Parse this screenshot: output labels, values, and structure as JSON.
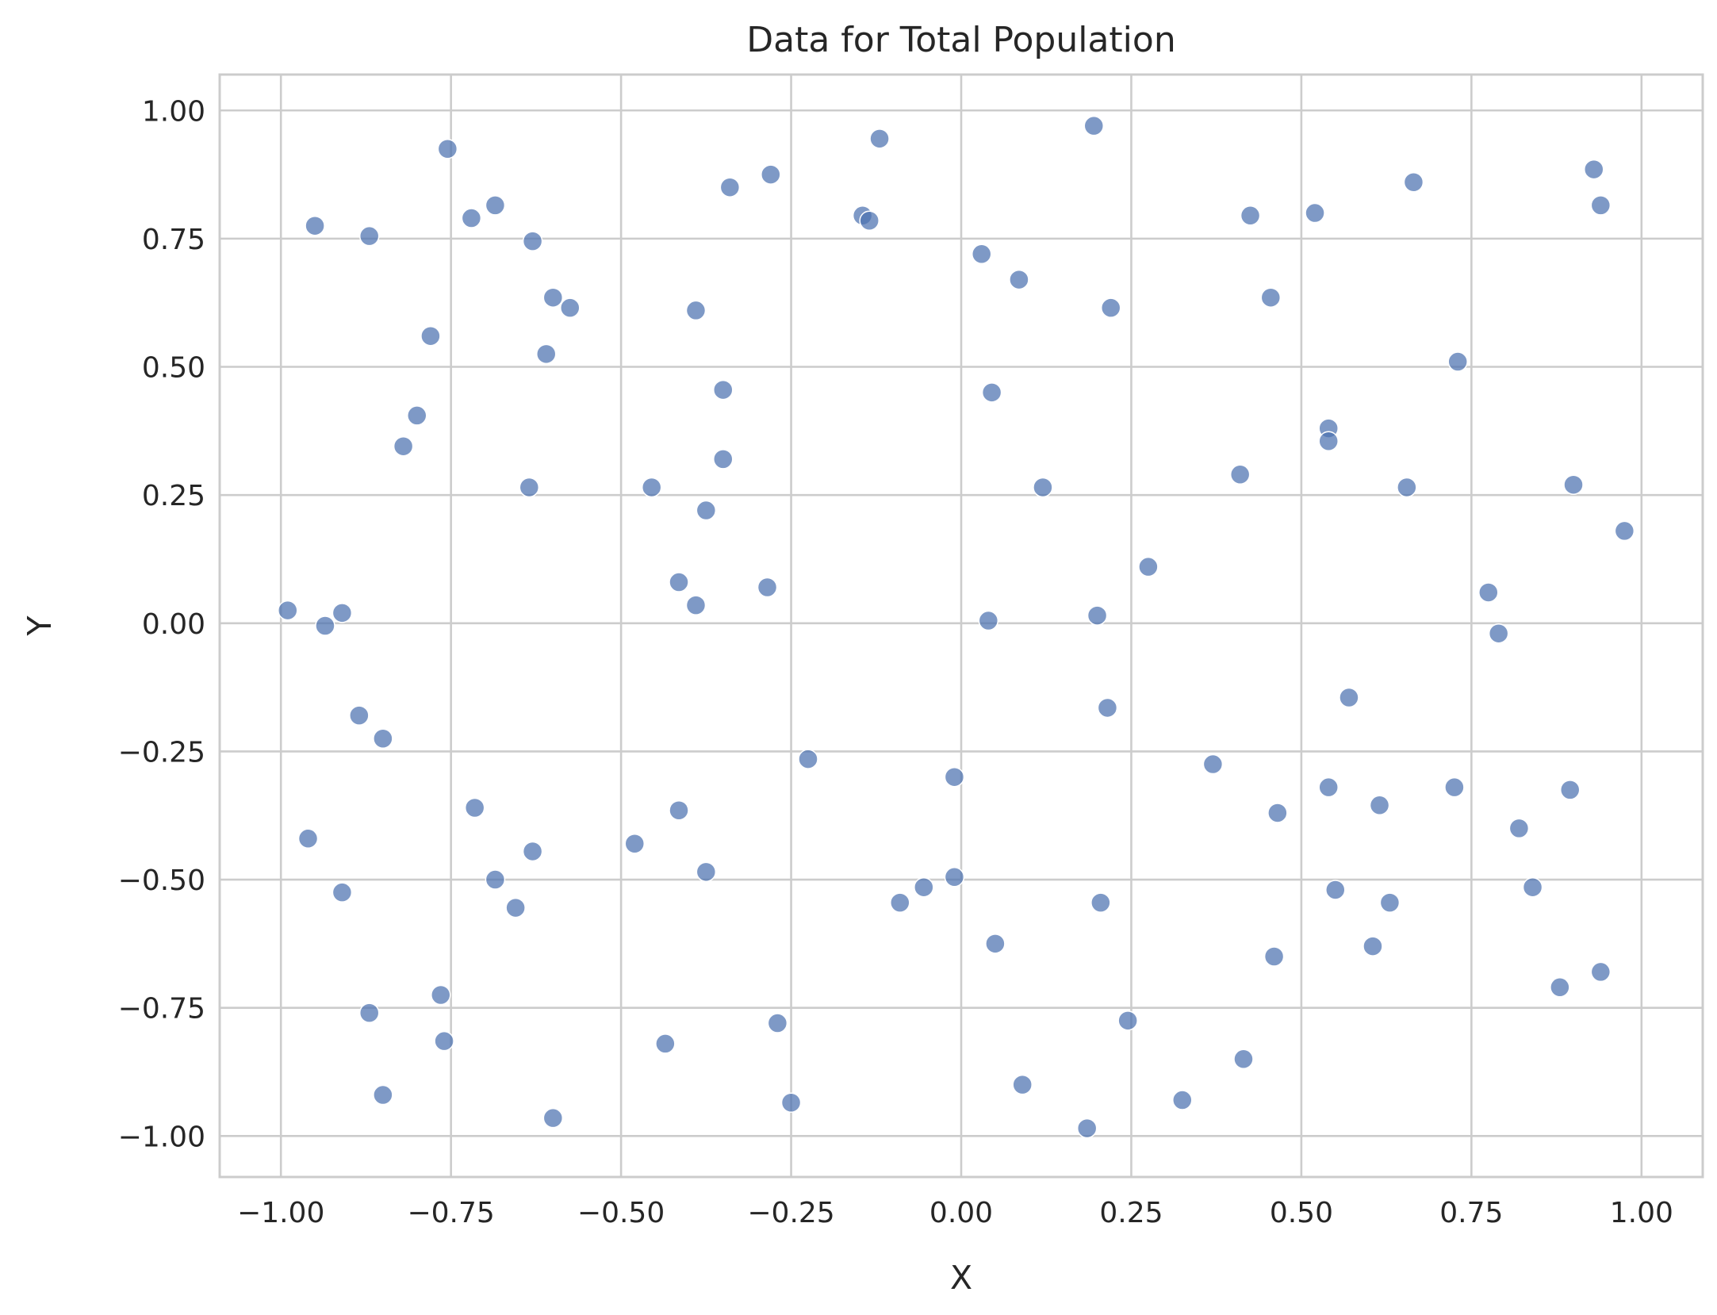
{
  "chart_data": {
    "type": "scatter",
    "title": "Data for Total Population",
    "xlabel": "X",
    "ylabel": "Y",
    "xlim": [
      -1.09,
      1.09
    ],
    "ylim": [
      -1.08,
      1.07
    ],
    "x_ticks": [
      -1.0,
      -0.75,
      -0.5,
      -0.25,
      0.0,
      0.25,
      0.5,
      0.75,
      1.0
    ],
    "y_ticks": [
      -1.0,
      -0.75,
      -0.5,
      -0.25,
      0.0,
      0.25,
      0.5,
      0.75,
      1.0
    ],
    "x_tick_labels": [
      "−1.00",
      "−0.75",
      "−0.50",
      "−0.25",
      "0.00",
      "0.25",
      "0.50",
      "0.75",
      "1.00"
    ],
    "y_tick_labels": [
      "1.00",
      "0.75",
      "0.50",
      "0.25",
      "0.00",
      "−0.25",
      "−0.50",
      "−0.75",
      "−1.00"
    ],
    "grid": true,
    "point_color": "#4c72b0",
    "points": [
      {
        "x": -0.99,
        "y": 0.025
      },
      {
        "x": -0.95,
        "y": 0.775
      },
      {
        "x": -0.96,
        "y": -0.42
      },
      {
        "x": -0.935,
        "y": -0.005
      },
      {
        "x": -0.91,
        "y": 0.02
      },
      {
        "x": -0.91,
        "y": -0.525
      },
      {
        "x": -0.885,
        "y": -0.18
      },
      {
        "x": -0.87,
        "y": 0.755
      },
      {
        "x": -0.87,
        "y": -0.76
      },
      {
        "x": -0.85,
        "y": -0.225
      },
      {
        "x": -0.85,
        "y": -0.92
      },
      {
        "x": -0.82,
        "y": 0.345
      },
      {
        "x": -0.8,
        "y": 0.405
      },
      {
        "x": -0.78,
        "y": 0.56
      },
      {
        "x": -0.765,
        "y": -0.725
      },
      {
        "x": -0.76,
        "y": -0.815
      },
      {
        "x": -0.755,
        "y": 0.925
      },
      {
        "x": -0.72,
        "y": 0.79
      },
      {
        "x": -0.715,
        "y": -0.36
      },
      {
        "x": -0.685,
        "y": 0.815
      },
      {
        "x": -0.685,
        "y": -0.5
      },
      {
        "x": -0.655,
        "y": -0.555
      },
      {
        "x": -0.635,
        "y": 0.265
      },
      {
        "x": -0.63,
        "y": 0.745
      },
      {
        "x": -0.63,
        "y": -0.445
      },
      {
        "x": -0.6,
        "y": 0.635
      },
      {
        "x": -0.61,
        "y": 0.525
      },
      {
        "x": -0.6,
        "y": -0.965
      },
      {
        "x": -0.575,
        "y": 0.615
      },
      {
        "x": -0.48,
        "y": -0.43
      },
      {
        "x": -0.455,
        "y": 0.265
      },
      {
        "x": -0.435,
        "y": -0.82
      },
      {
        "x": -0.415,
        "y": 0.08
      },
      {
        "x": -0.415,
        "y": -0.365
      },
      {
        "x": -0.39,
        "y": 0.61
      },
      {
        "x": -0.39,
        "y": 0.035
      },
      {
        "x": -0.375,
        "y": 0.22
      },
      {
        "x": -0.375,
        "y": -0.485
      },
      {
        "x": -0.35,
        "y": 0.455
      },
      {
        "x": -0.35,
        "y": 0.32
      },
      {
        "x": -0.34,
        "y": 0.85
      },
      {
        "x": -0.285,
        "y": 0.07
      },
      {
        "x": -0.28,
        "y": 0.875
      },
      {
        "x": -0.27,
        "y": -0.78
      },
      {
        "x": -0.25,
        "y": -0.935
      },
      {
        "x": -0.225,
        "y": -0.265
      },
      {
        "x": -0.145,
        "y": 0.795
      },
      {
        "x": -0.135,
        "y": 0.785
      },
      {
        "x": -0.12,
        "y": 0.945
      },
      {
        "x": -0.09,
        "y": -0.545
      },
      {
        "x": -0.055,
        "y": -0.515
      },
      {
        "x": -0.01,
        "y": -0.3
      },
      {
        "x": -0.01,
        "y": -0.495
      },
      {
        "x": 0.03,
        "y": 0.72
      },
      {
        "x": 0.04,
        "y": 0.005
      },
      {
        "x": 0.045,
        "y": 0.45
      },
      {
        "x": 0.05,
        "y": -0.625
      },
      {
        "x": 0.085,
        "y": 0.67
      },
      {
        "x": 0.09,
        "y": -0.9
      },
      {
        "x": 0.12,
        "y": 0.265
      },
      {
        "x": 0.185,
        "y": -0.985
      },
      {
        "x": 0.195,
        "y": 0.97
      },
      {
        "x": 0.2,
        "y": 0.015
      },
      {
        "x": 0.205,
        "y": -0.545
      },
      {
        "x": 0.215,
        "y": -0.165
      },
      {
        "x": 0.22,
        "y": 0.615
      },
      {
        "x": 0.245,
        "y": -0.775
      },
      {
        "x": 0.275,
        "y": 0.11
      },
      {
        "x": 0.325,
        "y": -0.93
      },
      {
        "x": 0.37,
        "y": -0.275
      },
      {
        "x": 0.41,
        "y": 0.29
      },
      {
        "x": 0.415,
        "y": -0.85
      },
      {
        "x": 0.425,
        "y": 0.795
      },
      {
        "x": 0.455,
        "y": 0.635
      },
      {
        "x": 0.46,
        "y": -0.65
      },
      {
        "x": 0.465,
        "y": -0.37
      },
      {
        "x": 0.52,
        "y": 0.8
      },
      {
        "x": 0.54,
        "y": 0.38
      },
      {
        "x": 0.54,
        "y": 0.355
      },
      {
        "x": 0.54,
        "y": -0.32
      },
      {
        "x": 0.55,
        "y": -0.52
      },
      {
        "x": 0.57,
        "y": -0.145
      },
      {
        "x": 0.605,
        "y": -0.63
      },
      {
        "x": 0.615,
        "y": -0.355
      },
      {
        "x": 0.63,
        "y": -0.545
      },
      {
        "x": 0.655,
        "y": 0.265
      },
      {
        "x": 0.665,
        "y": 0.86
      },
      {
        "x": 0.725,
        "y": -0.32
      },
      {
        "x": 0.73,
        "y": 0.51
      },
      {
        "x": 0.775,
        "y": 0.06
      },
      {
        "x": 0.79,
        "y": -0.02
      },
      {
        "x": 0.82,
        "y": -0.4
      },
      {
        "x": 0.84,
        "y": -0.515
      },
      {
        "x": 0.88,
        "y": -0.71
      },
      {
        "x": 0.895,
        "y": -0.325
      },
      {
        "x": 0.9,
        "y": 0.27
      },
      {
        "x": 0.93,
        "y": 0.885
      },
      {
        "x": 0.94,
        "y": 0.815
      },
      {
        "x": 0.94,
        "y": -0.68
      },
      {
        "x": 0.975,
        "y": 0.18
      }
    ]
  }
}
